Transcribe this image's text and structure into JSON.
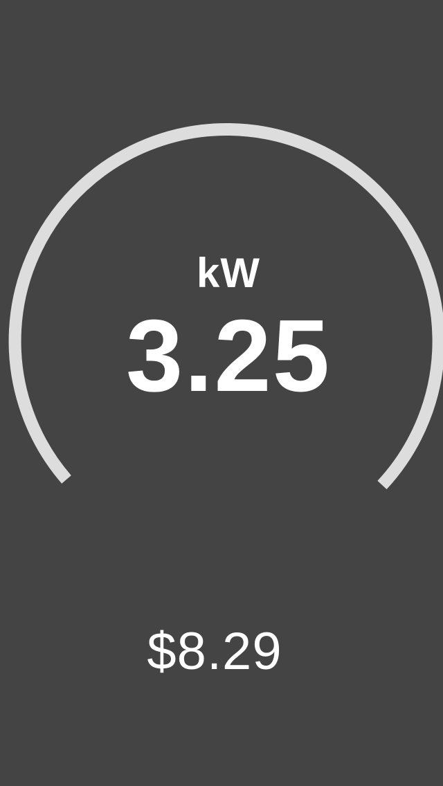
{
  "gauge": {
    "unit": "kW",
    "value": "3.25",
    "arc_color": "#dddddd"
  },
  "cost": {
    "value": "$8.29"
  },
  "theme": {
    "background": "#444444",
    "text": "#ffffff"
  }
}
